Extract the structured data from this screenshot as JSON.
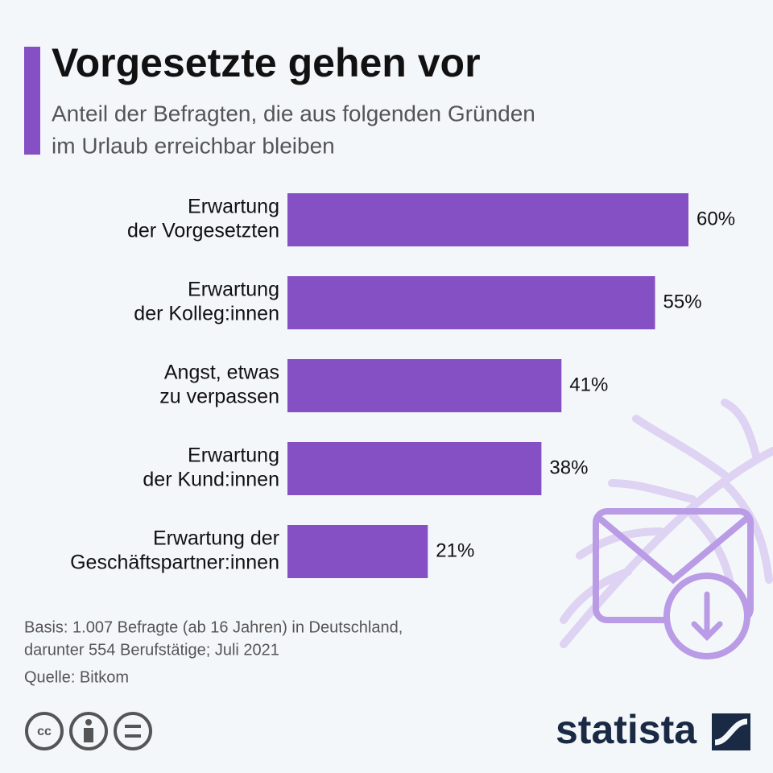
{
  "chart_data": {
    "type": "bar",
    "orientation": "horizontal",
    "title": "Vorgesetzte gehen vor",
    "subtitle": [
      "Anteil der Befragten, die aus folgenden Gründen",
      "im Urlaub erreichbar bleiben"
    ],
    "categories": [
      [
        "Erwartung",
        "der Vorgesetzten"
      ],
      [
        "Erwartung",
        "der Kolleg:innen"
      ],
      [
        "Angst, etwas",
        "zu verpassen"
      ],
      [
        "Erwartung",
        "der Kund:innen"
      ],
      [
        "Erwartung der",
        "Geschäftspartner:innen"
      ]
    ],
    "values": [
      60,
      55,
      41,
      38,
      21
    ],
    "value_labels": [
      "60%",
      "55%",
      "41%",
      "38%",
      "21%"
    ],
    "color": "#8450c4",
    "xlim": [
      0,
      60
    ],
    "notes": [
      "Basis: 1.007 Befragte (ab 16 Jahren) in Deutschland,",
      "darunter 554 Berufstätige; Juli 2021"
    ],
    "source": "Quelle: Bitkom",
    "brand": "statista"
  }
}
